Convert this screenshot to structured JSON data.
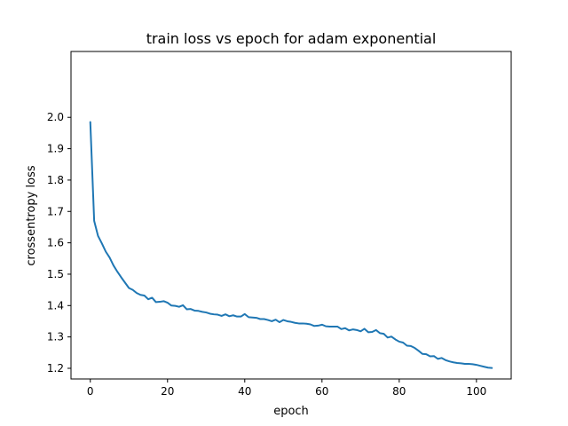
{
  "chart_data": {
    "type": "line",
    "title": "train loss vs epoch for adam exponential",
    "xlabel": "epoch",
    "ylabel": "crossentropy loss",
    "xlim": [
      -5,
      109
    ],
    "ylim": [
      1.166,
      2.21
    ],
    "xticks": [
      0,
      20,
      40,
      60,
      80,
      100
    ],
    "yticks": [
      1.2,
      1.3,
      1.4,
      1.5,
      1.6,
      1.7,
      1.8,
      1.9,
      2.0
    ],
    "ytick_labels": [
      "1.2",
      "1.3",
      "1.4",
      "1.5",
      "1.6",
      "1.7",
      "1.8",
      "1.9",
      "2.0"
    ],
    "grid": false,
    "legend": "none",
    "series": [
      {
        "color": "#1f77b4",
        "x": [
          0,
          1,
          2,
          3,
          4,
          5,
          6,
          7,
          8,
          9,
          10,
          11,
          12,
          13,
          14,
          15,
          16,
          17,
          18,
          19,
          20,
          21,
          22,
          23,
          24,
          25,
          26,
          27,
          28,
          29,
          30,
          31,
          32,
          33,
          34,
          35,
          36,
          37,
          38,
          39,
          40,
          41,
          42,
          43,
          44,
          45,
          46,
          47,
          48,
          49,
          50,
          51,
          52,
          53,
          54,
          55,
          56,
          57,
          58,
          59,
          60,
          61,
          62,
          63,
          64,
          65,
          66,
          67,
          68,
          69,
          70,
          71,
          72,
          73,
          74,
          75,
          76,
          77,
          78,
          79,
          80,
          81,
          82,
          83,
          84,
          85,
          86,
          87,
          88,
          89,
          90,
          91,
          92,
          93,
          94,
          95,
          96,
          97,
          98,
          99,
          100,
          101,
          102,
          103,
          104
        ],
        "y": [
          1.985,
          1.67,
          1.622,
          1.598,
          1.572,
          1.553,
          1.528,
          1.508,
          1.49,
          1.473,
          1.456,
          1.45,
          1.44,
          1.434,
          1.432,
          1.42,
          1.425,
          1.411,
          1.412,
          1.414,
          1.409,
          1.4,
          1.399,
          1.396,
          1.401,
          1.388,
          1.389,
          1.384,
          1.383,
          1.38,
          1.378,
          1.374,
          1.372,
          1.371,
          1.367,
          1.372,
          1.366,
          1.369,
          1.365,
          1.365,
          1.373,
          1.363,
          1.362,
          1.361,
          1.357,
          1.357,
          1.354,
          1.35,
          1.355,
          1.347,
          1.354,
          1.35,
          1.348,
          1.345,
          1.343,
          1.343,
          1.342,
          1.34,
          1.335,
          1.336,
          1.339,
          1.334,
          1.333,
          1.333,
          1.333,
          1.325,
          1.328,
          1.321,
          1.324,
          1.322,
          1.318,
          1.326,
          1.315,
          1.316,
          1.322,
          1.312,
          1.31,
          1.298,
          1.301,
          1.292,
          1.285,
          1.282,
          1.272,
          1.271,
          1.265,
          1.256,
          1.246,
          1.245,
          1.238,
          1.239,
          1.23,
          1.233,
          1.226,
          1.222,
          1.219,
          1.217,
          1.216,
          1.214,
          1.214,
          1.213,
          1.211,
          1.208,
          1.205,
          1.202,
          1.201
        ]
      }
    ]
  }
}
